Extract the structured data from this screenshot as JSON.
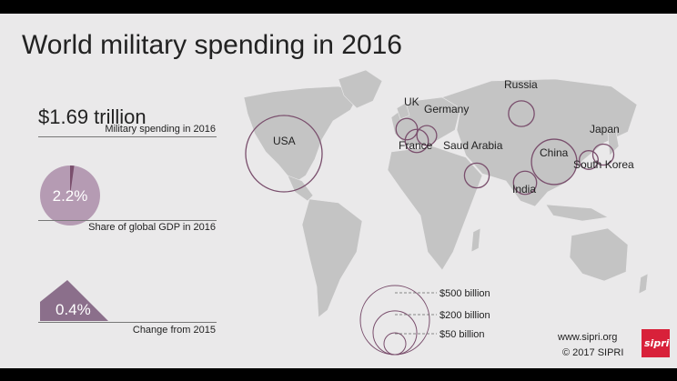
{
  "title": "World military spending in 2016",
  "stats": {
    "total": {
      "value": "$1.69 trillion",
      "caption": "Military spending in 2016"
    },
    "gdp_share": {
      "value": "2.2%",
      "fraction": 0.022,
      "caption": "Share of global GDP in 2016"
    },
    "change": {
      "value": "0.4%",
      "caption": "Change from 2015"
    }
  },
  "colors": {
    "accent": "#8b6f8b",
    "pie_light": "#b59bb3",
    "land": "#c4c4c4",
    "bubble": "#7a4f6d",
    "background": "#eae9ea",
    "logo": "#d8213a"
  },
  "legend": {
    "labels": [
      "$500 billion",
      "$200 billion",
      "$50 billion"
    ]
  },
  "credits": {
    "url": "www.sipri.org",
    "copyright": "© 2017 SIPRI",
    "logo_text": "sipri"
  },
  "chart_data": {
    "type": "bubble-map",
    "title": "World military spending in 2016",
    "unit": "US$ billion",
    "countries": [
      "USA",
      "China",
      "Russia",
      "Saud Arabia",
      "India",
      "France",
      "UK",
      "Japan",
      "Germany",
      "South Korea"
    ],
    "values": [
      611,
      215,
      69,
      64,
      56,
      56,
      48,
      46,
      41,
      37
    ],
    "legend_values": [
      500,
      200,
      50
    ]
  }
}
